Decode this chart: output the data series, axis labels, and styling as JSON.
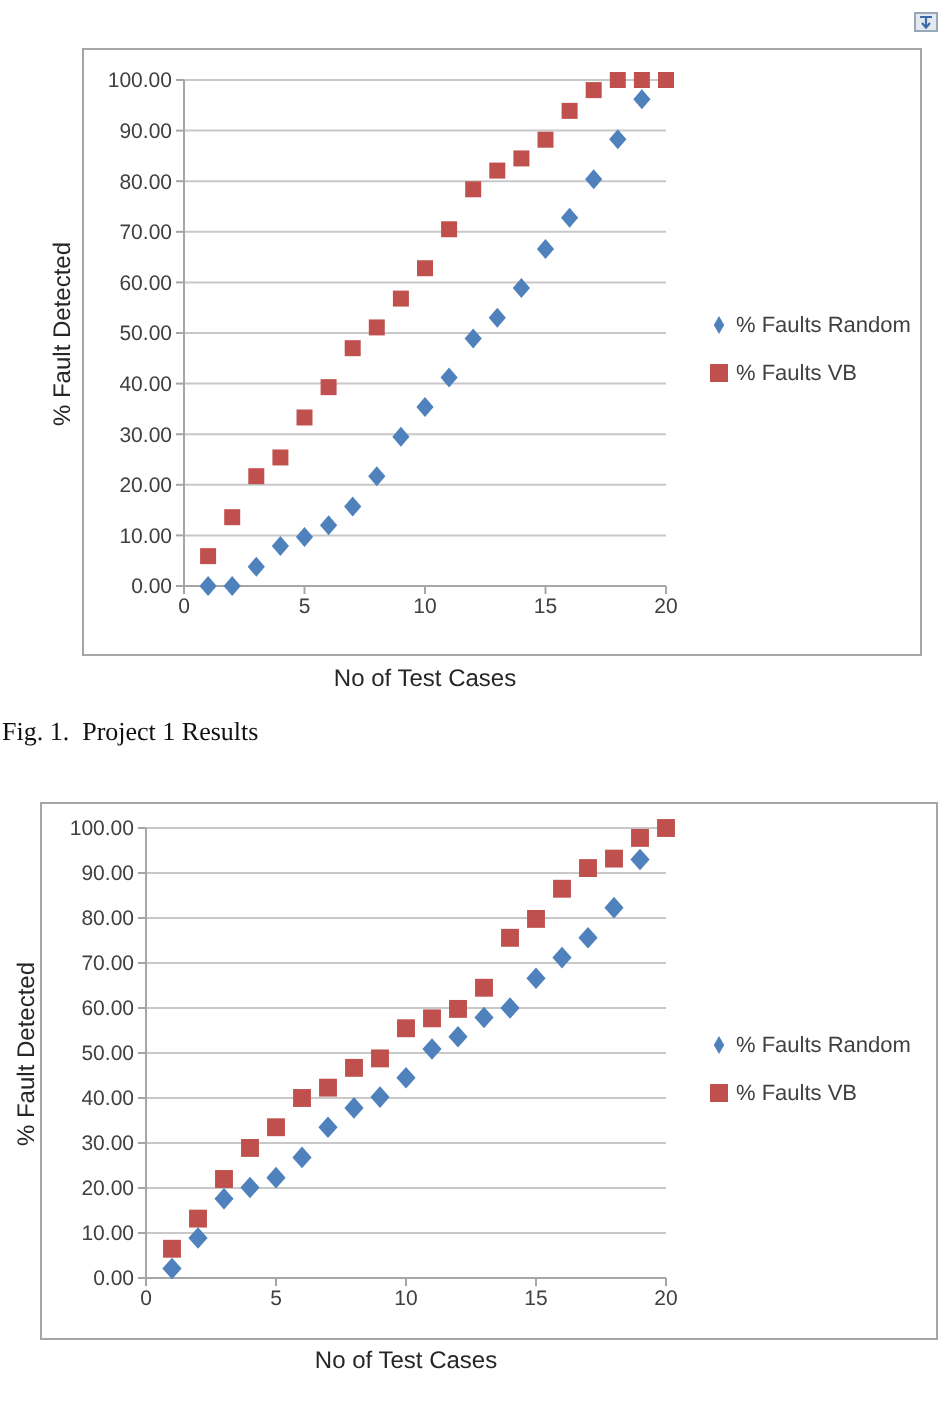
{
  "chart_data": [
    {
      "type": "scatter",
      "x": [
        1,
        2,
        3,
        4,
        5,
        6,
        7,
        8,
        9,
        10,
        11,
        12,
        13,
        14,
        15,
        16,
        17,
        18,
        19,
        20
      ],
      "xlabel": "No of Test Cases",
      "ylabel": "% Fault Detected",
      "xlim": [
        0,
        20
      ],
      "xticks": [
        0,
        5,
        10,
        15,
        20
      ],
      "ylim": [
        0,
        100
      ],
      "yticks": [
        {
          "value": 0,
          "label": "0.00"
        },
        {
          "value": 10,
          "label": "10.00"
        },
        {
          "value": 20,
          "label": "20.00"
        },
        {
          "value": 30,
          "label": "30.00"
        },
        {
          "value": 40,
          "label": "40.00"
        },
        {
          "value": 50,
          "label": "50.00"
        },
        {
          "value": 60,
          "label": "60.00"
        },
        {
          "value": 70,
          "label": "70.00"
        },
        {
          "value": 80,
          "label": "80.00"
        },
        {
          "value": 90,
          "label": "90.00"
        },
        {
          "value": 100,
          "label": "100.00"
        }
      ],
      "grid": "y",
      "legend": "right",
      "series": [
        {
          "name": "% Faults Random",
          "color": "#4f81bd",
          "marker": "diamond",
          "values": [
            0,
            0,
            3.8,
            7.9,
            9.7,
            12,
            15.7,
            21.7,
            29.5,
            35.4,
            41.2,
            48.9,
            53,
            58.9,
            66.6,
            72.8,
            80.4,
            88.3,
            96.2,
            null
          ]
        },
        {
          "name": "% Faults VB",
          "color": "#c0504d",
          "marker": "square",
          "values": [
            5.9,
            13.6,
            21.7,
            25.4,
            33.3,
            39.3,
            47,
            51.1,
            56.8,
            62.8,
            70.5,
            78.4,
            82.1,
            84.5,
            88.2,
            93.9,
            98,
            100,
            100,
            100
          ]
        }
      ],
      "annotations": [
        "Fig. 1.  Project 1 Results"
      ]
    },
    {
      "type": "scatter",
      "x": [
        1,
        2,
        3,
        4,
        5,
        6,
        7,
        8,
        9,
        10,
        11,
        12,
        13,
        14,
        15,
        16,
        17,
        18,
        19,
        20
      ],
      "xlabel": "No of Test Cases",
      "ylabel": "% Fault Detected",
      "xlim": [
        0,
        20
      ],
      "xticks": [
        0,
        5,
        10,
        15,
        20
      ],
      "ylim": [
        0,
        100
      ],
      "yticks": [
        {
          "value": 0,
          "label": "0.00"
        },
        {
          "value": 10,
          "label": "10.00"
        },
        {
          "value": 20,
          "label": "20.00"
        },
        {
          "value": 30,
          "label": "30.00"
        },
        {
          "value": 40,
          "label": "40.00"
        },
        {
          "value": 50,
          "label": "50.00"
        },
        {
          "value": 60,
          "label": "60.00"
        },
        {
          "value": 70,
          "label": "70.00"
        },
        {
          "value": 80,
          "label": "80.00"
        },
        {
          "value": 90,
          "label": "90.00"
        },
        {
          "value": 100,
          "label": "100.00"
        }
      ],
      "grid": "y",
      "legend": "right",
      "series": [
        {
          "name": "% Faults Random",
          "color": "#4f81bd",
          "marker": "diamond",
          "values": [
            2.1,
            8.9,
            17.6,
            20.1,
            22.3,
            26.8,
            33.5,
            37.8,
            40.2,
            44.5,
            50.9,
            53.6,
            57.9,
            60,
            66.6,
            71.2,
            75.6,
            82.3,
            93,
            null
          ]
        },
        {
          "name": "% Faults VB",
          "color": "#c0504d",
          "marker": "square",
          "values": [
            6.5,
            13.2,
            22,
            28.9,
            33.5,
            40,
            42.3,
            46.7,
            48.8,
            55.5,
            57.7,
            59.8,
            64.5,
            75.6,
            79.8,
            86.5,
            91.1,
            93.2,
            97.8,
            100
          ]
        }
      ]
    }
  ]
}
